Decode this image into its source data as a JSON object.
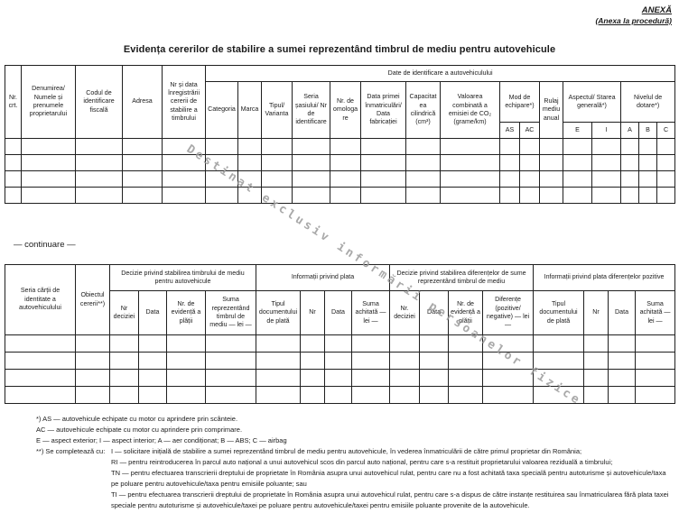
{
  "page": {
    "annex_label": "ANEXĂ",
    "annex_sub": "(Anexa la procedură)",
    "title": "Evidența cererilor de stabilire a sumei reprezentând timbrul de mediu pentru autovehicule",
    "continuation_label": "— continuare —",
    "watermark": "Destinat exclusiv informării persoanelor fizice",
    "border_color": "#1f1f1f",
    "watermark_color": "#9b9b9b"
  },
  "table1": {
    "headers": {
      "nr_crt": "Nr. crt.",
      "owner": "Denumirea/ Numele și prenumele proprietarului",
      "fiscal_code": "Codul de identificare fiscală",
      "address": "Adresa",
      "request_reg": "Nr și data înregistrării cererii de stabilire a timbrului",
      "vehicle_group": "Date de identificare a autovehiculului",
      "category": "Categoria",
      "brand": "Marca",
      "type_variant": "Tipul/ Varianta",
      "chassis": "Seria șasiului/ Nr de identificare",
      "approval_nr": "Nr. de omologare",
      "first_reg": "Data primei înmatriculări/ Data fabricației",
      "cylinder": "Capacitatea cilindrică (cm³)",
      "co2": "Valoarea combinată a emisiei de CO₂ (grame/km)",
      "equip_mode": "Mod de echipare*)",
      "as": "AS",
      "ac": "AC",
      "mileage": "Rulaj mediu anual",
      "aspect": "Aspectul/ Starea generală*)",
      "e": "E",
      "i": "I",
      "level": "Nivelul de dotare*)",
      "a": "A",
      "b": "B",
      "c": "C"
    },
    "body": {
      "rows": 4,
      "cols": 21
    }
  },
  "table2": {
    "headers": {
      "card_series": "Seria cărții de identitate a autovehiculului",
      "request_object": "Obiectul cererii**)",
      "decision_group": "Decizie privind stabilirea timbrului de mediu pentru autovehicule",
      "decision_nr": "Nr deciziei",
      "decision_data": "Data",
      "payment_evidence": "Nr. de evidență a plății",
      "stamp_sum": "Suma reprezentând timbrul de mediu — lei —",
      "payment_group": "Informații privind plata",
      "doc_type": "Tipul documentului de plată",
      "nr": "Nr",
      "data": "Data",
      "paid_sum": "Suma achitată — lei —",
      "diff_decision_group": "Decizie privind stabilirea diferențelor de sume reprezentând timbrul de mediu",
      "diff_decision_nr": "Nr. deciziei",
      "diff_data": "Data",
      "diff_evidence": "Nr. de evidență a plății",
      "differences": "Diferențe (pozitive/ negative) — lei —",
      "diff_payment_group": "Informații privind plata diferențelor pozitive",
      "diff_doc_type": "Tipul documentului de plată",
      "diff_nr": "Nr",
      "diff_data2": "Data",
      "diff_paid_sum": "Suma achitată — lei —"
    },
    "body": {
      "rows": 4,
      "cols": 18
    }
  },
  "footnotes": {
    "line1": "*) AS — autovehicule echipate cu motor cu aprindere prin scânteie.",
    "line2": "AC — autovehicule echipate cu motor cu aprindere prin comprimare.",
    "line3": "E — aspect exterior; I — aspect interior; A — aer condiționat; B — ABS; C — airbag",
    "completare_label": "**) Se completează cu:",
    "entries": [
      "I — solicitare inițială de stabilire a sumei reprezentând timbrul de mediu pentru autovehicule, în vederea înmatriculării de către primul proprietar din România;",
      "RI — pentru reintroducerea în parcul auto național a unui autovehicul scos din parcul auto național, pentru care s-a restituit proprietarului valoarea reziduală a timbrului;",
      "TN — pentru efectuarea transcrierii dreptului de proprietate în România asupra unui autovehicul rulat, pentru care nu a fost achitată taxa specială pentru autoturisme și autovehicule/taxa pe poluare pentru autovehicule/taxa pentru emisiile poluante; sau",
      "TI — pentru efectuarea transcrierii dreptului de proprietate în România asupra unui autovehicul rulat, pentru care s-a dispus de către instanțe restituirea sau înmatricularea fără plata taxei speciale pentru autoturisme și autovehicule/taxei pe poluare pentru autovehicule/taxei pentru emisiile poluante provenite de la autovehicule."
    ]
  }
}
